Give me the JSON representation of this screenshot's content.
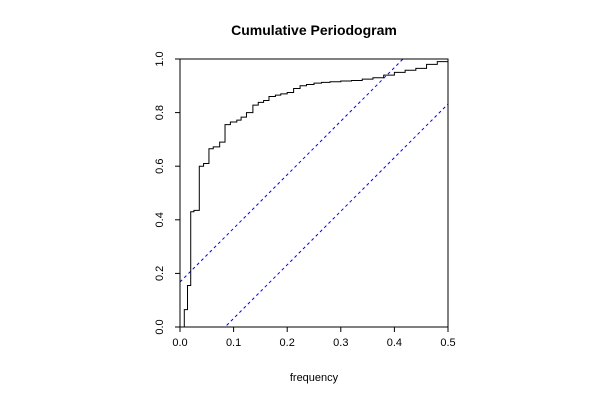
{
  "chart_data": {
    "type": "line",
    "title": "Cumulative Periodogram",
    "xlabel": "frequency",
    "ylabel": "",
    "xlim": [
      0.0,
      0.5
    ],
    "ylim": [
      0.0,
      1.0
    ],
    "x_ticks": [
      "0.0",
      "0.1",
      "0.2",
      "0.3",
      "0.4",
      "0.5"
    ],
    "y_ticks": [
      "0.0",
      "0.2",
      "0.4",
      "0.6",
      "0.8",
      "1.0"
    ],
    "grid": false,
    "series": [
      {
        "style": "step",
        "color": "#000000",
        "x": [
          0.0,
          0.008,
          0.014,
          0.02,
          0.026,
          0.036,
          0.044,
          0.054,
          0.062,
          0.074,
          0.084,
          0.094,
          0.106,
          0.114,
          0.124,
          0.136,
          0.146,
          0.156,
          0.166,
          0.178,
          0.188,
          0.2,
          0.212,
          0.224,
          0.236,
          0.25,
          0.264,
          0.28,
          0.3,
          0.32,
          0.34,
          0.36,
          0.38,
          0.4,
          0.42,
          0.44,
          0.46,
          0.48,
          0.5
        ],
        "y": [
          0.0,
          0.065,
          0.155,
          0.43,
          0.435,
          0.6,
          0.61,
          0.665,
          0.672,
          0.69,
          0.755,
          0.765,
          0.772,
          0.783,
          0.8,
          0.828,
          0.838,
          0.845,
          0.86,
          0.865,
          0.87,
          0.875,
          0.89,
          0.9,
          0.905,
          0.91,
          0.913,
          0.915,
          0.918,
          0.92,
          0.925,
          0.93,
          0.94,
          0.95,
          0.958,
          0.965,
          0.98,
          0.99,
          1.0
        ]
      },
      {
        "style": "dashed",
        "color": "#0000ff",
        "x": [
          0.0,
          0.5
        ],
        "y": [
          0.168,
          1.168
        ]
      },
      {
        "style": "dashed",
        "color": "#0000ff",
        "x": [
          0.0,
          0.5
        ],
        "y": [
          -0.168,
          0.832
        ]
      }
    ]
  }
}
